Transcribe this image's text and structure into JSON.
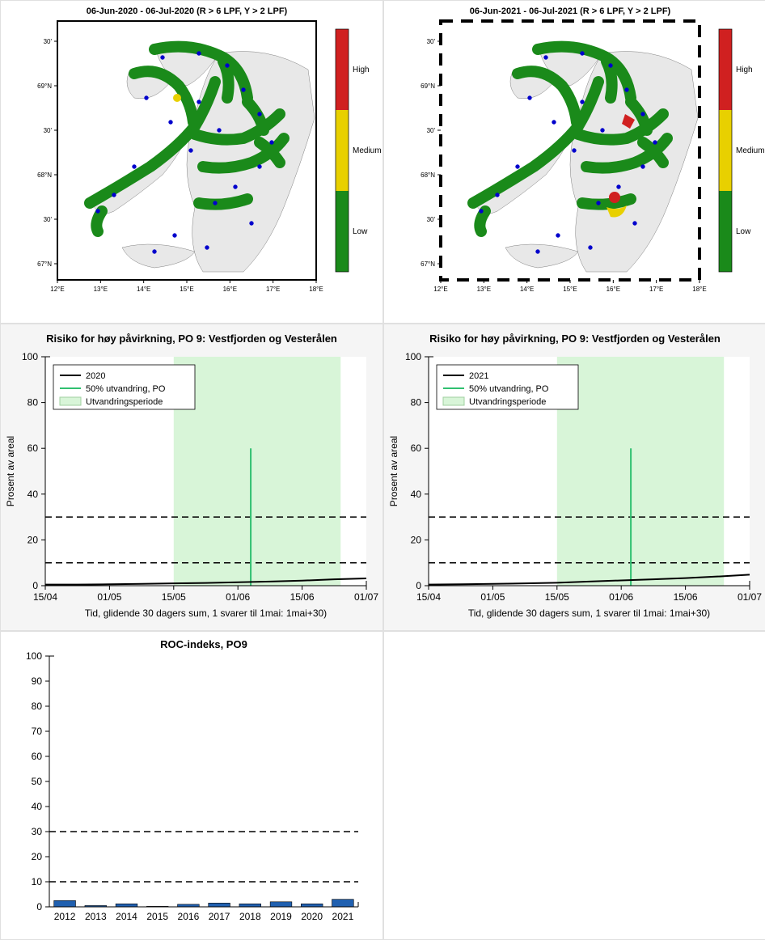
{
  "maps": {
    "left": {
      "title": "06-Jun-2020  - 06-Jul-2020  (R > 6 LPF, Y > 2 LPF)",
      "border_dashed": false,
      "lat_ticks": [
        "30'",
        "69°N",
        "30'",
        "68°N",
        "30'",
        "67°N"
      ],
      "lon_ticks": [
        "12°E",
        "13°E",
        "14°E",
        "15°E",
        "16°E",
        "17°E",
        "18°E"
      ],
      "colorbar": {
        "low": "Low",
        "medium": "Medium",
        "high": "High",
        "colors": [
          "#1a8a1a",
          "#e8d000",
          "#d02020"
        ]
      },
      "land_color": "#e8e8e8",
      "coast_color": "#1a8a1a",
      "hotspot_colors": []
    },
    "right": {
      "title": "06-Jun-2021  - 06-Jul-2021  (R > 6 LPF, Y > 2 LPF)",
      "border_dashed": true,
      "lat_ticks": [
        "30'",
        "69°N",
        "30'",
        "68°N",
        "30'",
        "67°N"
      ],
      "lon_ticks": [
        "12°E",
        "13°E",
        "14°E",
        "15°E",
        "16°E",
        "17°E",
        "18°E"
      ],
      "colorbar": {
        "low": "Low",
        "medium": "Medium",
        "high": "High",
        "colors": [
          "#1a8a1a",
          "#e8d000",
          "#d02020"
        ]
      },
      "land_color": "#e8e8e8",
      "coast_color": "#1a8a1a",
      "hotspot_colors": [
        "#d02020",
        "#e8d000"
      ]
    }
  },
  "line_charts": {
    "left": {
      "title": "Risiko for høy påvirkning, PO 9: Vestfjorden og Vesterålen",
      "ylabel": "Prosent av areal",
      "xlabel": "Tid, glidende 30 dagers sum, 1 svarer til 1mai: 1mai+30)",
      "ylim": [
        0,
        100
      ],
      "ytick_step": 20,
      "x_ticks": [
        "15/04",
        "01/05",
        "15/05",
        "01/06",
        "15/06",
        "01/07"
      ],
      "legend": {
        "series": "2020",
        "line50": "50% utvandring, PO",
        "period": "Utvandringsperiode"
      },
      "threshold_lines": [
        10,
        30
      ],
      "period_start_idx": 2.0,
      "period_end_idx": 4.6,
      "line50_idx": 3.2,
      "series_color": "#000000",
      "period_fill": "#d8f5d8",
      "line50_color": "#30c070",
      "data": [
        0.5,
        0.5,
        0.6,
        0.8,
        1.0,
        1.2,
        1.5,
        1.8,
        2.2,
        2.8,
        3.2
      ]
    },
    "right": {
      "title": "Risiko for høy påvirkning, PO 9: Vestfjorden og Vesterålen",
      "ylabel": "Prosent av areal",
      "xlabel": "Tid, glidende 30 dagers sum, 1 svarer til 1mai: 1mai+30)",
      "ylim": [
        0,
        100
      ],
      "ytick_step": 20,
      "x_ticks": [
        "15/04",
        "01/05",
        "15/05",
        "01/06",
        "15/06",
        "01/07"
      ],
      "legend": {
        "series": "2021",
        "line50": "50% utvandring, PO",
        "period": "Utvandringsperiode"
      },
      "threshold_lines": [
        10,
        30
      ],
      "period_start_idx": 2.0,
      "period_end_idx": 4.6,
      "line50_idx": 3.15,
      "series_color": "#000000",
      "period_fill": "#d8f5d8",
      "line50_color": "#30c070",
      "data": [
        0.5,
        0.6,
        0.8,
        1.0,
        1.3,
        1.8,
        2.3,
        2.8,
        3.3,
        4.0,
        4.8
      ]
    }
  },
  "bar_chart": {
    "title": "ROC-indeks, PO9",
    "ylim": [
      0,
      100
    ],
    "ytick_step": 10,
    "categories": [
      "2012",
      "2013",
      "2014",
      "2015",
      "2016",
      "2017",
      "2018",
      "2019",
      "2020",
      "2021"
    ],
    "values": [
      2.5,
      0.5,
      1.2,
      0.2,
      1.0,
      1.5,
      1.2,
      2.0,
      1.2,
      3.0
    ],
    "threshold_lines": [
      10,
      30
    ],
    "bar_color": "#2060b0",
    "bar_edge": "#000000"
  }
}
